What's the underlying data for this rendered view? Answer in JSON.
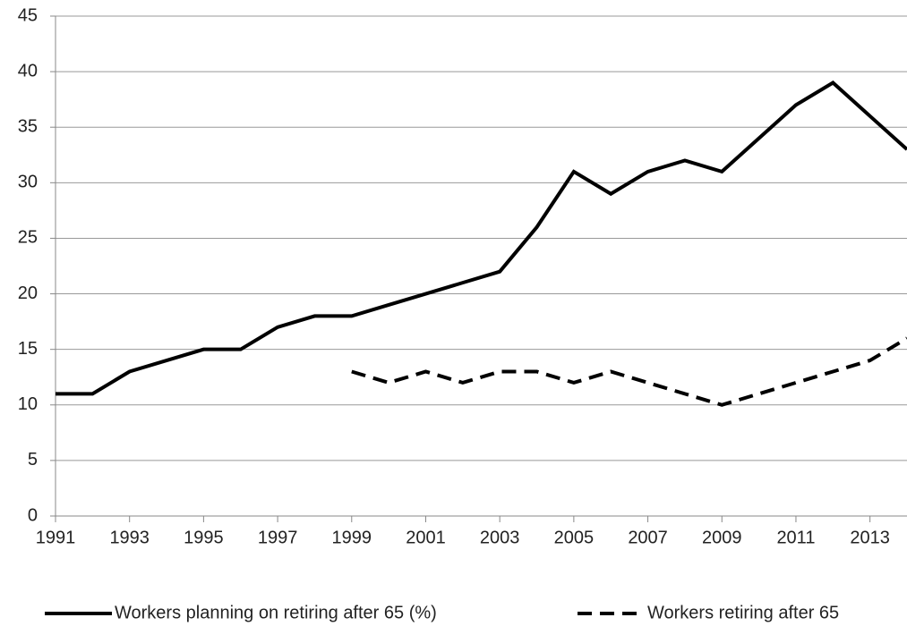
{
  "chart_data": {
    "type": "line",
    "x": [
      1991,
      1992,
      1993,
      1994,
      1995,
      1996,
      1997,
      1998,
      1999,
      2000,
      2001,
      2002,
      2003,
      2004,
      2005,
      2006,
      2007,
      2008,
      2009,
      2010,
      2011,
      2012,
      2013,
      2014
    ],
    "series": [
      {
        "name": "Workers planning on retiring after 65 (%)",
        "color": "#000000",
        "dash": false,
        "values": [
          11,
          11,
          13,
          14,
          15,
          15,
          17,
          18,
          18,
          19,
          20,
          21,
          22,
          26,
          31,
          29,
          31,
          32,
          31,
          34,
          37,
          39,
          36,
          33
        ]
      },
      {
        "name": "Workers retiring after 65",
        "color": "#000000",
        "dash": true,
        "values": [
          null,
          null,
          null,
          null,
          null,
          null,
          null,
          null,
          13,
          12,
          13,
          12,
          13,
          13,
          12,
          13,
          12,
          11,
          10,
          11,
          12,
          13,
          14,
          16
        ]
      }
    ],
    "xlim": [
      1991,
      2014
    ],
    "xticks": [
      1991,
      1993,
      1995,
      1997,
      1999,
      2001,
      2003,
      2005,
      2007,
      2009,
      2011,
      2013
    ],
    "ylim": [
      0,
      45
    ],
    "yticks": [
      0,
      5,
      10,
      15,
      20,
      25,
      30,
      35,
      40,
      45
    ],
    "grid": true,
    "legend": "bottom"
  }
}
